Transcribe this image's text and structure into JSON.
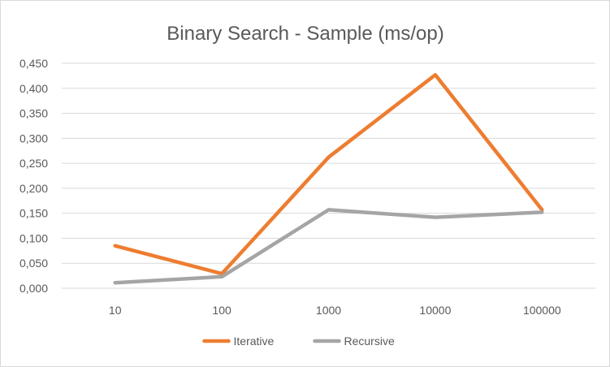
{
  "chart_data": {
    "type": "line",
    "title": "Binary Search - Sample (ms/op)",
    "xlabel": "",
    "ylabel": "",
    "categories": [
      "10",
      "100",
      "1000",
      "10000",
      "100000"
    ],
    "series": [
      {
        "name": "Iterative",
        "color": "#ED7D31",
        "values": [
          0.085,
          0.029,
          0.262,
          0.427,
          0.157
        ]
      },
      {
        "name": "Recursive",
        "color": "#A5A5A5",
        "values": [
          0.011,
          0.023,
          0.157,
          0.142,
          0.152
        ]
      }
    ],
    "ylim": [
      0,
      0.45
    ],
    "ytick_step": 0.05,
    "ytick_labels": [
      "0,000",
      "0,050",
      "0,100",
      "0,150",
      "0,200",
      "0,250",
      "0,300",
      "0,350",
      "0,400",
      "0,450"
    ],
    "grid": true,
    "legend": "bottom"
  }
}
